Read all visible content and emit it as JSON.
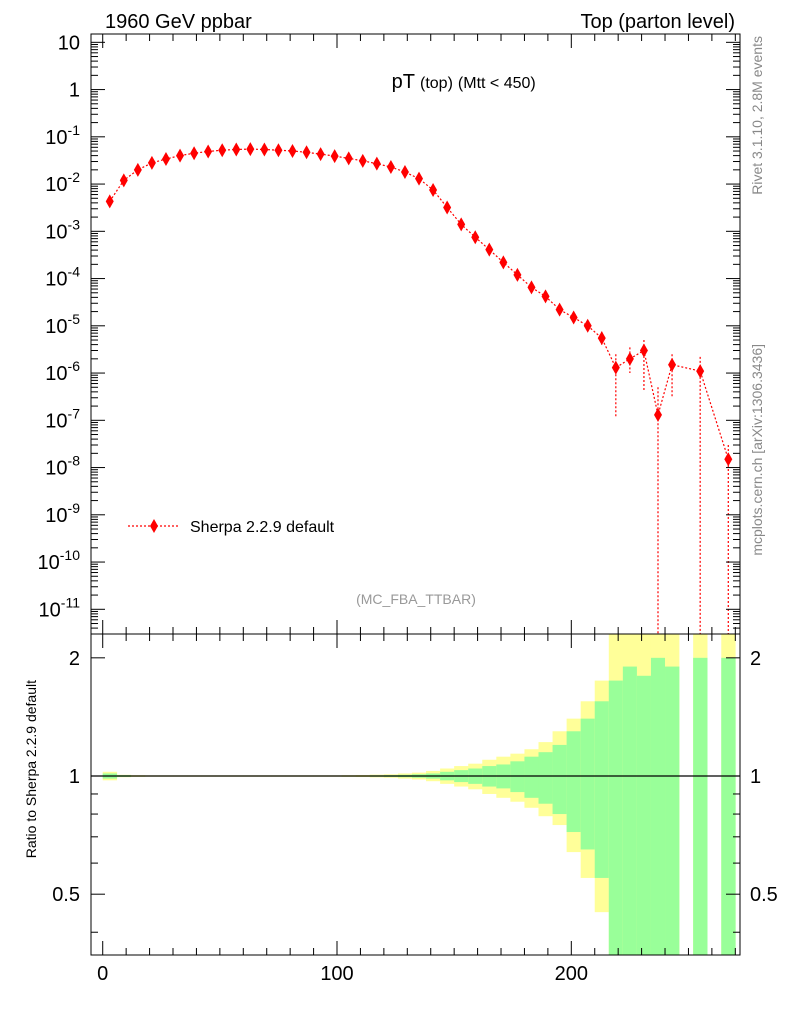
{
  "header": {
    "left": "1960 GeV ppbar",
    "right": "Top (parton level)"
  },
  "side_labels": {
    "rivet": "Rivet 3.1.10,  2.8M events",
    "mcplots": "mcplots.cern.ch [arXiv:1306.3436]"
  },
  "chart_data": [
    {
      "type": "scatter",
      "title_main": "pT",
      "title_sub1": "(top)",
      "title_sub2": "(Mtt < 450)",
      "analysis_label": "(MC_FBA_TTBAR)",
      "log_y": true,
      "xlim": [
        -5,
        272
      ],
      "ylim": [
        3e-12,
        15
      ],
      "y_tick_labels": [
        "10^-11",
        "10^-10",
        "10^-9",
        "10^-8",
        "10^-7",
        "10^-6",
        "10^-5",
        "10^-4",
        "10^-3",
        "10^-2",
        "10^-1",
        "1",
        "10"
      ],
      "legend": {
        "label": "Sherpa 2.2.9 default",
        "position": "lower-left"
      },
      "series": [
        {
          "name": "Sherpa 2.2.9 default",
          "color": "#ff0000",
          "x": [
            3,
            9,
            15,
            21,
            27,
            33,
            39,
            45,
            51,
            57,
            63,
            69,
            75,
            81,
            87,
            93,
            99,
            105,
            111,
            117,
            123,
            129,
            135,
            141,
            147,
            153,
            159,
            165,
            171,
            177,
            183,
            189,
            195,
            201,
            207,
            213,
            219,
            225,
            231,
            237,
            243,
            255,
            267
          ],
          "y": [
            0.0043,
            0.012,
            0.02,
            0.028,
            0.034,
            0.04,
            0.045,
            0.049,
            0.052,
            0.054,
            0.055,
            0.054,
            0.052,
            0.05,
            0.047,
            0.043,
            0.039,
            0.035,
            0.031,
            0.027,
            0.023,
            0.018,
            0.013,
            0.0075,
            0.0032,
            0.0014,
            0.00075,
            0.00041,
            0.00022,
            0.00012,
            6.5e-05,
            4.2e-05,
            2.2e-05,
            1.5e-05,
            1e-05,
            5.5e-06,
            1.3e-06,
            2e-06,
            3e-06,
            1.3e-07,
            1.5e-06,
            1.1e-06,
            1.5e-08
          ],
          "y_low": [
            0.0043,
            0.012,
            0.02,
            0.028,
            0.034,
            0.04,
            0.045,
            0.049,
            0.052,
            0.054,
            0.055,
            0.054,
            0.052,
            0.05,
            0.047,
            0.043,
            0.039,
            0.035,
            0.031,
            0.027,
            0.023,
            0.018,
            0.013,
            0.0075,
            0.0032,
            0.0014,
            0.00075,
            0.00041,
            0.00022,
            0.00012,
            6.5e-05,
            4.2e-05,
            2.2e-05,
            1.5e-05,
            1e-05,
            4e-06,
            1.2e-07,
            1e-06,
            4e-07,
            1e-13,
            3e-07,
            1e-13,
            1e-13
          ],
          "y_high": [
            0.0043,
            0.012,
            0.02,
            0.028,
            0.034,
            0.04,
            0.045,
            0.049,
            0.052,
            0.054,
            0.055,
            0.054,
            0.052,
            0.05,
            0.047,
            0.043,
            0.039,
            0.035,
            0.031,
            0.027,
            0.023,
            0.018,
            0.013,
            0.0075,
            0.0032,
            0.0014,
            0.00075,
            0.00041,
            0.00022,
            0.00012,
            6.5e-05,
            4.2e-05,
            2.2e-05,
            1.5e-05,
            1e-05,
            7.5e-06,
            2.5e-06,
            3.5e-06,
            5e-06,
            5e-07,
            2.5e-06,
            2.2e-06,
            3e-08
          ]
        }
      ]
    },
    {
      "type": "area",
      "ylabel": "Ratio to Sherpa 2.2.9 default",
      "xlim": [
        -5,
        272
      ],
      "ylim": [
        0.35,
        2.3
      ],
      "x_ticks": [
        0,
        100,
        200
      ],
      "y_ticks": [
        0.5,
        1,
        2
      ],
      "bands": {
        "inner_color": "#99ff99",
        "outer_color": "#ffff99",
        "bin_edges": [
          0,
          6,
          12,
          18,
          24,
          30,
          36,
          42,
          48,
          54,
          60,
          66,
          72,
          78,
          84,
          90,
          96,
          102,
          108,
          114,
          120,
          126,
          132,
          138,
          144,
          150,
          156,
          162,
          168,
          174,
          180,
          186,
          192,
          198,
          204,
          210,
          216,
          222,
          228,
          234,
          240,
          246,
          252,
          258,
          264,
          270
        ],
        "inner_low": [
          0.985,
          0.995,
          0.997,
          0.998,
          0.998,
          0.998,
          0.998,
          0.998,
          0.998,
          0.998,
          0.998,
          0.998,
          0.998,
          0.998,
          0.998,
          0.998,
          0.998,
          0.997,
          0.997,
          0.996,
          0.995,
          0.993,
          0.99,
          0.985,
          0.975,
          0.965,
          0.955,
          0.94,
          0.93,
          0.91,
          0.88,
          0.85,
          0.8,
          0.72,
          0.65,
          0.55,
          0.35,
          0.35,
          0.35,
          0.35,
          0.35,
          null,
          0.35,
          null,
          0.35
        ],
        "inner_high": [
          1.015,
          1.005,
          1.003,
          1.002,
          1.002,
          1.002,
          1.002,
          1.002,
          1.002,
          1.002,
          1.002,
          1.002,
          1.002,
          1.002,
          1.002,
          1.002,
          1.002,
          1.003,
          1.003,
          1.004,
          1.005,
          1.007,
          1.01,
          1.015,
          1.025,
          1.035,
          1.045,
          1.06,
          1.07,
          1.09,
          1.12,
          1.15,
          1.2,
          1.3,
          1.4,
          1.55,
          1.75,
          1.9,
          1.8,
          2.0,
          1.9,
          null,
          2.0,
          null,
          2.0
        ],
        "outer_low": [
          0.975,
          0.993,
          0.995,
          0.996,
          0.996,
          0.996,
          0.996,
          0.996,
          0.996,
          0.996,
          0.996,
          0.996,
          0.996,
          0.996,
          0.996,
          0.996,
          0.996,
          0.995,
          0.994,
          0.992,
          0.99,
          0.985,
          0.98,
          0.97,
          0.955,
          0.94,
          0.925,
          0.9,
          0.88,
          0.86,
          0.83,
          0.79,
          0.75,
          0.64,
          0.55,
          0.45,
          0.35,
          0.35,
          0.35,
          0.35,
          0.35,
          null,
          0.35,
          null,
          0.35
        ],
        "outer_high": [
          1.025,
          1.007,
          1.005,
          1.004,
          1.004,
          1.004,
          1.004,
          1.004,
          1.004,
          1.004,
          1.004,
          1.004,
          1.004,
          1.004,
          1.004,
          1.004,
          1.004,
          1.005,
          1.006,
          1.008,
          1.01,
          1.015,
          1.02,
          1.03,
          1.045,
          1.06,
          1.075,
          1.1,
          1.12,
          1.14,
          1.17,
          1.22,
          1.3,
          1.4,
          1.55,
          1.75,
          2.3,
          2.3,
          2.3,
          2.3,
          2.3,
          null,
          2.3,
          null,
          2.3
        ],
        "ratio_line": 1
      }
    }
  ]
}
